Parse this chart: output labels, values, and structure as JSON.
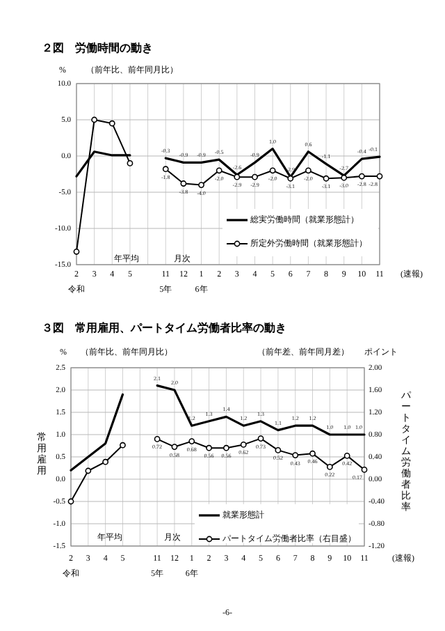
{
  "chart_data": [
    {
      "type": "line",
      "title": "２図　労働時間の動き",
      "subtitle": "（前年比、前年同月比）",
      "ylabel": "%",
      "categories": [
        "2\n令和",
        "3",
        "4",
        "5",
        null,
        "11\n5年",
        "12",
        "1\n6年",
        "2",
        "3",
        "4",
        "5",
        "6",
        "7",
        "8",
        "9",
        "10",
        "11"
      ],
      "ylim": [
        -15,
        10
      ],
      "yticks": [
        {
          "value": -15,
          "label": "-15.0"
        },
        {
          "value": -10,
          "label": "-10.0"
        },
        {
          "value": -5,
          "label": "-5.0"
        },
        {
          "value": 0,
          "label": "0.0"
        },
        {
          "value": 5,
          "label": "5.0"
        },
        {
          "value": 10,
          "label": "10.0"
        }
      ],
      "grid": true,
      "legend": "bottom right",
      "line_style": "solid",
      "series": [
        {
          "name": "総実労働時間（就業形態計）",
          "color": "#000000",
          "marker": "none",
          "values": [
            -2.8,
            0.6,
            0.1,
            0.1,
            null,
            -0.3,
            -0.9,
            -0.9,
            -0.5,
            -2.6,
            -0.9,
            1.0,
            -2.9,
            0.6,
            -1.1,
            -2.7,
            -0.4,
            -0.1
          ],
          "value_labels": [
            null,
            null,
            null,
            null,
            null,
            "-0.3",
            "-0.9",
            "-0.9",
            "-0.5",
            "-2.6",
            "-0.9",
            "1.0",
            "-2.9",
            "0.6",
            "-1.1",
            "-2.7",
            "-0.4",
            "-0.1"
          ]
        },
        {
          "name": "所定外労働時間（就業形態計）",
          "color": "#000000",
          "marker": "circle",
          "values": [
            -13.2,
            5.0,
            4.5,
            -1.0,
            null,
            -1.8,
            -3.8,
            -4.0,
            -2.0,
            -2.9,
            -2.9,
            -2.0,
            -3.1,
            -2.0,
            -3.1,
            -3.0,
            -2.8,
            -2.8
          ],
          "value_labels": [
            null,
            null,
            null,
            null,
            null,
            "-1.8",
            "-3.8",
            "-4.0",
            "-2.0",
            "-2.9",
            "-2.9",
            "-2.0",
            "-3.1",
            "-2.0",
            "-3.1",
            "-3.0",
            "-2.8",
            "-2.8"
          ]
        }
      ],
      "annotations": [
        "年平均",
        "月次",
        "(速報)"
      ]
    },
    {
      "type": "line",
      "title": "３図　常用雇用、パートタイム労働者比率の動き",
      "ylabel": "常用雇用",
      "y2label": "パートタイム労働者比率",
      "categories": [
        "2\n令和",
        "3",
        "4",
        "5",
        null,
        "11\n5年",
        "12",
        "1\n6年",
        "2",
        "3",
        "4",
        "5",
        "6",
        "7",
        "8",
        "9",
        "10",
        "11"
      ],
      "ylim": [
        -1.5,
        2.5
      ],
      "yticks": [
        {
          "value": -1.5,
          "label": "-1.5"
        },
        {
          "value": -1,
          "label": "-1.0"
        },
        {
          "value": -0.5,
          "label": "-0.5"
        },
        {
          "value": 0,
          "label": "0.0"
        },
        {
          "value": 0.5,
          "label": "0.5"
        },
        {
          "value": 1,
          "label": "1.0"
        },
        {
          "value": 1.5,
          "label": "1.5"
        },
        {
          "value": 2,
          "label": "2.0"
        },
        {
          "value": 2.5,
          "label": "2.5"
        }
      ],
      "y2lim": [
        -1.2,
        2.0
      ],
      "y2ticks": [
        {
          "value": -1.2,
          "label": "-1.20"
        },
        {
          "value": -0.8,
          "label": "-0.80"
        },
        {
          "value": -0.4,
          "label": "-0.40"
        },
        {
          "value": 0,
          "label": "0.00"
        },
        {
          "value": 0.4,
          "label": "0.40"
        },
        {
          "value": 0.8,
          "label": "0.80"
        },
        {
          "value": 1.2,
          "label": "1.20"
        },
        {
          "value": 1.6,
          "label": "1.60"
        },
        {
          "value": 2.0,
          "label": "2.00"
        }
      ],
      "grid": true,
      "legend": "bottom",
      "line_style": "solid",
      "series": [
        {
          "name": "就業形態計",
          "color": "#000000",
          "marker": "none",
          "values": [
            0.2,
            0.5,
            0.8,
            1.9,
            null,
            2.1,
            2.0,
            1.2,
            1.3,
            1.4,
            1.2,
            1.3,
            1.1,
            1.2,
            1.2,
            1.0,
            1.0,
            1.0
          ],
          "value_labels": [
            null,
            null,
            null,
            null,
            null,
            "2.1",
            "2.0",
            "1.2",
            "1.3",
            "1.4",
            "1.2",
            "1.3",
            "1.1",
            "1.2",
            "1.2",
            "1.0",
            "1.0",
            "1.0"
          ]
        },
        {
          "name": "パートタイム労働者比率（右目盛）",
          "color": "#000000",
          "marker": "circle",
          "axis": "y2",
          "values": [
            -0.4,
            0.15,
            0.31,
            0.61,
            null,
            0.72,
            0.58,
            0.68,
            0.56,
            0.56,
            0.62,
            0.73,
            0.52,
            0.43,
            0.46,
            0.22,
            0.42,
            0.17
          ],
          "value_labels": [
            null,
            null,
            null,
            null,
            null,
            "0.72",
            "0.58",
            "0.68",
            "0.56",
            "0.56",
            "0.62",
            "0.73",
            "0.52",
            "0.43",
            "0.46",
            "0.22",
            "0.42",
            "0.17"
          ]
        }
      ],
      "annotations": [
        "%",
        "（前年比、前年同月比）",
        "（前年差、前年同月差）",
        "ポイント",
        "年平均",
        "月次",
        "(速報)",
        "-6-"
      ]
    }
  ]
}
